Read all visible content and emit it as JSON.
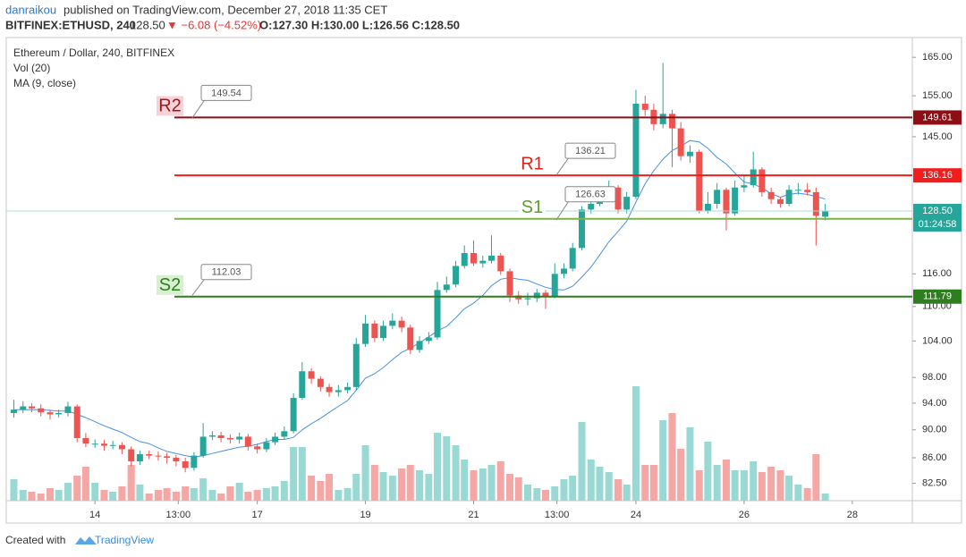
{
  "header": {
    "author": "danraikou",
    "published": "published on TradingView.com, December 27, 2018 11:35 CET",
    "symbol": "BITFINEX:ETHUSD, 240",
    "last": "128.50",
    "change": "▼ −6.08 (−4.52%)",
    "ohlc": "O:127.30 H:130.00 L:126.56 C:128.50"
  },
  "footer": {
    "created": "Created with",
    "brand": "TradingView"
  },
  "chart_data": {
    "type": "candlestick",
    "title": "Ethereum / Dollar, 240, BITFINEX",
    "volume_label": "Vol (20)",
    "ma_label": "MA (9, close)",
    "log_scale": true,
    "colors": {
      "up": "#26a69a",
      "down": "#ef5350",
      "volume_up": "#9ad9d3",
      "volume_down": "#f4a7a5",
      "ma": "#4a90e2",
      "last": "#26a69a"
    },
    "xlim": [
      12.36,
      29.11
    ],
    "ylim": [
      80.2,
      170.4
    ],
    "xticks": [
      14,
      {
        "value": 15.54,
        "label": "13:00"
      },
      17,
      19,
      21,
      {
        "value": 22.54,
        "label": "13:00"
      },
      24,
      26,
      28
    ],
    "yticks": [
      {
        "value": 82.5,
        "label": "82.50"
      },
      {
        "value": 86,
        "label": "86.00"
      },
      {
        "value": 90,
        "label": "90.00"
      },
      {
        "value": 94,
        "label": "94.00"
      },
      {
        "value": 98,
        "label": "98.00"
      },
      {
        "value": 104,
        "label": "104.00"
      },
      {
        "value": 110,
        "label": "110.00"
      },
      {
        "value": 116,
        "label": "116.00"
      },
      {
        "value": 145,
        "label": "145.00"
      },
      {
        "value": 155,
        "label": "155.00"
      },
      {
        "value": 165,
        "label": "165.00"
      }
    ],
    "x": [
      12.5,
      12.67,
      12.83,
      13.0,
      13.17,
      13.33,
      13.5,
      13.67,
      13.83,
      14.0,
      14.17,
      14.33,
      14.5,
      14.67,
      14.83,
      15.0,
      15.17,
      15.33,
      15.5,
      15.67,
      15.83,
      16.0,
      16.17,
      16.33,
      16.5,
      16.67,
      16.83,
      17.0,
      17.17,
      17.33,
      17.5,
      17.67,
      17.83,
      18.0,
      18.17,
      18.33,
      18.5,
      18.67,
      18.83,
      19.0,
      19.17,
      19.33,
      19.5,
      19.67,
      19.83,
      20.0,
      20.17,
      20.33,
      20.5,
      20.67,
      20.83,
      21.0,
      21.17,
      21.33,
      21.5,
      21.67,
      21.83,
      22.0,
      22.17,
      22.33,
      22.5,
      22.67,
      22.83,
      23.0,
      23.17,
      23.33,
      23.5,
      23.67,
      23.83,
      24.0,
      24.17,
      24.33,
      24.5,
      24.67,
      24.83,
      25.0,
      25.17,
      25.33,
      25.5,
      25.67,
      25.83,
      26.0,
      26.17,
      26.33,
      26.5,
      26.67,
      26.83,
      27.0,
      27.17,
      27.33,
      27.5
    ],
    "open": [
      92.5,
      93.0,
      93.5,
      93.2,
      92.6,
      92.3,
      92.5,
      93.5,
      88.8,
      88.0,
      88.0,
      87.7,
      87.8,
      87.2,
      85.5,
      86.5,
      86.3,
      86.2,
      86.0,
      85.5,
      84.6,
      86.3,
      89.0,
      89.2,
      88.8,
      88.6,
      89.0,
      87.6,
      87.2,
      88.2,
      89.0,
      89.8,
      94.8,
      99.0,
      97.8,
      96.5,
      95.7,
      96.0,
      96.5,
      103.5,
      107.0,
      104.5,
      106.6,
      107.5,
      106.3,
      102.5,
      104.0,
      104.6,
      113.0,
      114.0,
      117.5,
      120.0,
      118.0,
      118.5,
      119.5,
      116.5,
      112.0,
      111.3,
      111.5,
      112.5,
      111.8,
      116.0,
      117.0,
      121.0,
      128.8,
      130.0,
      131.5,
      133.5,
      128.8,
      131.5,
      153.0,
      151.5,
      148.0,
      150.5,
      147.0,
      140.5,
      141.5,
      128.5,
      130.0,
      133.0,
      128.0,
      133.5,
      134.0,
      137.5,
      132.5,
      131.0,
      130.0,
      133.0,
      133.0,
      132.5,
      127.3
    ],
    "high": [
      94.5,
      94.3,
      94.0,
      93.8,
      93.0,
      93.0,
      94.2,
      93.8,
      89.5,
      88.6,
      88.5,
      88.4,
      88.2,
      87.6,
      87.0,
      87.0,
      86.9,
      86.7,
      86.4,
      86.0,
      86.8,
      91.0,
      89.8,
      89.7,
      89.3,
      89.6,
      89.4,
      88.0,
      88.8,
      89.6,
      90.5,
      95.5,
      100.5,
      99.5,
      98.2,
      97.0,
      96.8,
      97.2,
      104.5,
      108.5,
      107.5,
      107.5,
      108.8,
      108.2,
      106.8,
      104.8,
      105.5,
      114.5,
      115.5,
      118.5,
      121.5,
      122.5,
      119.5,
      123.5,
      120.0,
      117.0,
      112.8,
      112.5,
      113.2,
      113.0,
      118.0,
      118.0,
      122.0,
      129.5,
      131.5,
      132.5,
      135.0,
      134.0,
      132.5,
      156.5,
      155.0,
      153.0,
      163.5,
      151.5,
      148.5,
      143.0,
      142.0,
      132.5,
      134.5,
      133.5,
      135.0,
      136.0,
      141.5,
      138.0,
      133.5,
      131.5,
      134.0,
      134.5,
      134.5,
      133.5,
      130.0
    ],
    "low": [
      91.8,
      92.5,
      92.6,
      92.0,
      91.5,
      91.8,
      92.0,
      88.2,
      87.5,
      87.4,
      87.0,
      87.2,
      86.5,
      84.8,
      85.0,
      85.8,
      85.6,
      85.2,
      84.8,
      84.0,
      84.2,
      86.0,
      88.5,
      88.2,
      88.0,
      88.0,
      87.0,
      86.6,
      86.8,
      87.8,
      88.6,
      89.5,
      94.5,
      97.0,
      95.8,
      95.0,
      95.0,
      95.5,
      96.0,
      103.0,
      103.8,
      104.0,
      106.0,
      105.5,
      101.8,
      102.0,
      103.5,
      104.2,
      112.5,
      113.5,
      117.0,
      117.5,
      117.2,
      118.0,
      115.8,
      110.8,
      110.5,
      110.2,
      110.8,
      109.6,
      111.5,
      115.2,
      116.5,
      120.5,
      128.0,
      129.5,
      131.0,
      128.0,
      128.0,
      131.0,
      150.0,
      146.5,
      147.0,
      138.0,
      139.5,
      139.0,
      128.0,
      128.0,
      129.0,
      124.5,
      127.5,
      132.5,
      133.5,
      131.5,
      130.0,
      129.2,
      129.5,
      132.0,
      131.8,
      121.5,
      126.56
    ],
    "close": [
      93.0,
      93.5,
      93.2,
      92.6,
      92.3,
      92.5,
      93.5,
      88.8,
      88.0,
      88.0,
      87.7,
      87.8,
      87.2,
      85.5,
      86.5,
      86.3,
      86.2,
      86.0,
      85.5,
      84.6,
      86.3,
      89.0,
      89.2,
      88.8,
      88.6,
      89.0,
      87.6,
      87.2,
      88.2,
      89.0,
      89.8,
      94.8,
      99.0,
      97.8,
      96.5,
      95.7,
      96.0,
      96.5,
      103.5,
      107.0,
      104.5,
      106.6,
      107.5,
      106.3,
      102.5,
      104.0,
      104.6,
      113.0,
      114.0,
      117.5,
      120.0,
      118.0,
      118.5,
      119.5,
      116.5,
      112.0,
      111.3,
      111.5,
      112.5,
      111.8,
      116.0,
      117.0,
      121.0,
      128.8,
      130.0,
      131.5,
      133.5,
      128.8,
      131.5,
      153.0,
      151.5,
      148.0,
      150.5,
      147.0,
      140.5,
      141.5,
      128.5,
      130.0,
      133.0,
      128.0,
      133.5,
      134.0,
      137.5,
      132.5,
      131.0,
      130.0,
      133.0,
      133.0,
      132.5,
      127.5,
      128.5
    ],
    "volume": [
      24,
      12,
      10,
      8,
      14,
      12,
      20,
      28,
      38,
      20,
      12,
      10,
      16,
      40,
      18,
      8,
      12,
      14,
      10,
      16,
      14,
      25,
      12,
      8,
      16,
      20,
      10,
      12,
      14,
      16,
      22,
      60,
      60,
      28,
      22,
      30,
      12,
      14,
      30,
      62,
      40,
      32,
      28,
      36,
      40,
      34,
      30,
      76,
      72,
      62,
      46,
      34,
      36,
      40,
      44,
      30,
      26,
      18,
      14,
      12,
      16,
      24,
      28,
      88,
      46,
      38,
      32,
      24,
      18,
      128,
      40,
      40,
      90,
      98,
      58,
      82,
      34,
      66,
      40,
      46,
      34,
      34,
      44,
      32,
      38,
      34,
      28,
      18,
      14,
      52,
      8
    ],
    "ma": [
      93.0,
      93.0,
      93.0,
      93.0,
      92.9,
      92.8,
      92.8,
      92.3,
      91.8,
      91.2,
      90.6,
      90.1,
      89.6,
      88.9,
      88.3,
      88.0,
      87.4,
      86.9,
      86.6,
      86.3,
      86.1,
      86.3,
      86.6,
      86.9,
      87.2,
      87.5,
      87.6,
      87.9,
      88.3,
      88.6,
      88.6,
      88.9,
      90.0,
      90.9,
      91.7,
      92.6,
      93.5,
      94.4,
      96.0,
      97.9,
      98.6,
      99.6,
      100.9,
      102.1,
      102.8,
      103.7,
      104.7,
      105.7,
      106.5,
      108.0,
      109.6,
      110.6,
      112.0,
      113.8,
      115.0,
      115.3,
      115.0,
      114.8,
      114.1,
      113.5,
      113.1,
      113.0,
      113.7,
      115.4,
      117.3,
      119.6,
      122.2,
      124.3,
      126.4,
      130.4,
      134.3,
      137.2,
      139.8,
      141.8,
      142.8,
      144.1,
      143.8,
      142.3,
      140.2,
      138.7,
      136.7,
      134.7,
      134.3,
      133.4,
      132.2,
      131.4,
      132.0,
      132.3,
      132.0,
      131.6,
      131.0
    ],
    "last_price": {
      "value": 128.5,
      "label": "128.50"
    },
    "countdown": "01:24:58",
    "levels": [
      {
        "name": "R2",
        "value": 149.61,
        "marked": 149.54,
        "color": "#8b0f14",
        "label_color": "#a3141c",
        "label_fill": "#f6d3d8"
      },
      {
        "name": "R1",
        "value": 136.16,
        "marked": 136.21,
        "color": "#f21d1d",
        "label_color": "#e02020",
        "label_fill": "#ffffff"
      },
      {
        "name": "S1",
        "value": 126.87,
        "marked": 126.63,
        "color": "#7cb342",
        "label_color": "#5f9e2f",
        "label_fill": "#ffffff"
      },
      {
        "name": "S2",
        "value": 111.79,
        "marked": 112.03,
        "color": "#2e7d1f",
        "label_color": "#2e7d1f",
        "label_fill": "#d7f0d0"
      }
    ]
  }
}
